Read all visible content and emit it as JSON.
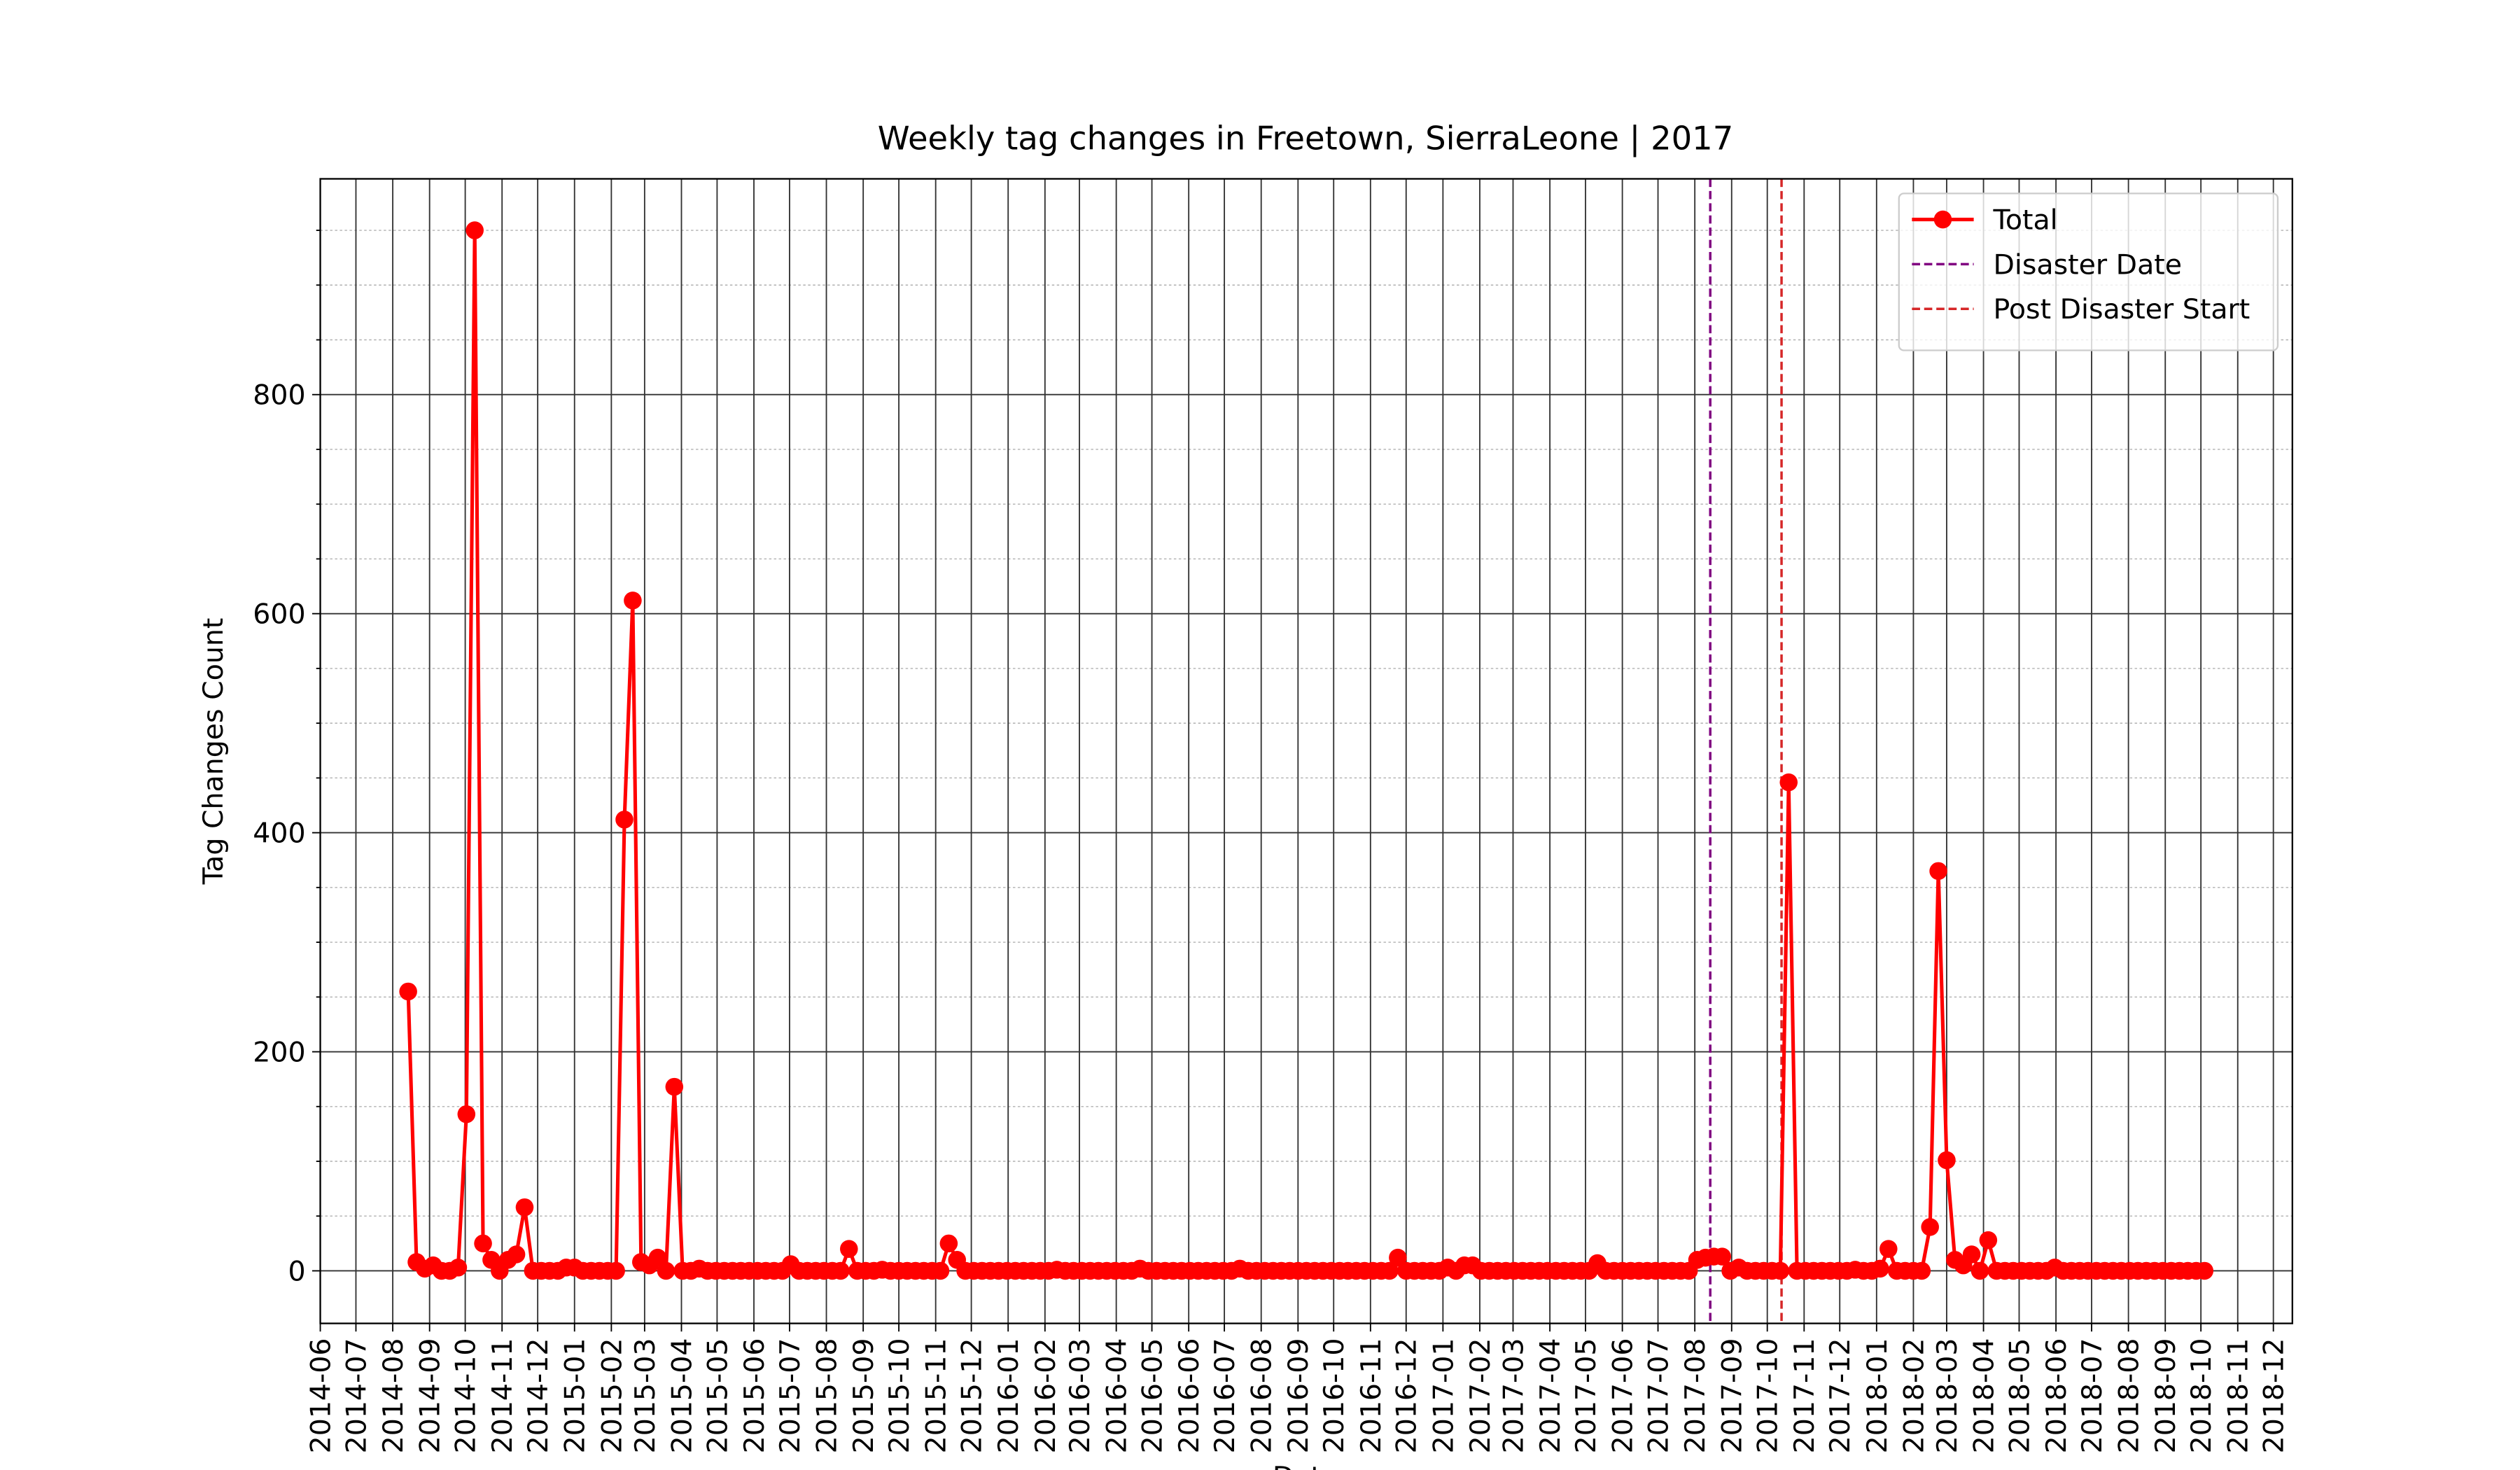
{
  "chart_data": {
    "type": "line",
    "title": "Weekly tag changes in Freetown, SierraLeone | 2017",
    "x_label": "Date",
    "y_label": "Tag Changes Count",
    "x": [
      "2014-08-14",
      "2014-08-21",
      "2014-08-28",
      "2014-09-04",
      "2014-09-11",
      "2014-09-18",
      "2014-09-25",
      "2014-10-02",
      "2014-10-09",
      "2014-10-16",
      "2014-10-23",
      "2014-10-30",
      "2014-11-06",
      "2014-11-13",
      "2014-11-20",
      "2014-11-27",
      "2014-12-04",
      "2014-12-11",
      "2014-12-18",
      "2014-12-25",
      "2015-01-01",
      "2015-01-08",
      "2015-01-15",
      "2015-01-22",
      "2015-01-29",
      "2015-02-05",
      "2015-02-12",
      "2015-02-19",
      "2015-02-26",
      "2015-03-05",
      "2015-03-12",
      "2015-03-19",
      "2015-03-26",
      "2015-04-02",
      "2015-04-09",
      "2015-04-16",
      "2015-04-23",
      "2015-04-30",
      "2015-05-07",
      "2015-05-14",
      "2015-05-21",
      "2015-05-28",
      "2015-06-04",
      "2015-06-11",
      "2015-06-18",
      "2015-06-25",
      "2015-07-02",
      "2015-07-09",
      "2015-07-16",
      "2015-07-23",
      "2015-07-30",
      "2015-08-06",
      "2015-08-13",
      "2015-08-20",
      "2015-08-27",
      "2015-09-03",
      "2015-09-10",
      "2015-09-17",
      "2015-09-24",
      "2015-10-01",
      "2015-10-08",
      "2015-10-15",
      "2015-10-22",
      "2015-10-29",
      "2015-11-05",
      "2015-11-12",
      "2015-11-19",
      "2015-11-26",
      "2015-12-03",
      "2015-12-10",
      "2015-12-17",
      "2015-12-24",
      "2015-12-31",
      "2016-01-07",
      "2016-01-14",
      "2016-01-21",
      "2016-01-28",
      "2016-02-04",
      "2016-02-11",
      "2016-02-18",
      "2016-02-25",
      "2016-03-03",
      "2016-03-10",
      "2016-03-17",
      "2016-03-24",
      "2016-03-31",
      "2016-04-07",
      "2016-04-14",
      "2016-04-21",
      "2016-04-28",
      "2016-05-05",
      "2016-05-12",
      "2016-05-19",
      "2016-05-26",
      "2016-06-02",
      "2016-06-09",
      "2016-06-16",
      "2016-06-23",
      "2016-06-30",
      "2016-07-07",
      "2016-07-14",
      "2016-07-21",
      "2016-07-28",
      "2016-08-04",
      "2016-08-11",
      "2016-08-18",
      "2016-08-25",
      "2016-09-01",
      "2016-09-08",
      "2016-09-15",
      "2016-09-22",
      "2016-09-29",
      "2016-10-06",
      "2016-10-13",
      "2016-10-20",
      "2016-10-27",
      "2016-11-03",
      "2016-11-10",
      "2016-11-17",
      "2016-11-24",
      "2016-12-01",
      "2016-12-08",
      "2016-12-15",
      "2016-12-22",
      "2016-12-29",
      "2017-01-05",
      "2017-01-12",
      "2017-01-19",
      "2017-01-26",
      "2017-02-02",
      "2017-02-09",
      "2017-02-16",
      "2017-02-23",
      "2017-03-02",
      "2017-03-09",
      "2017-03-16",
      "2017-03-23",
      "2017-03-30",
      "2017-04-06",
      "2017-04-13",
      "2017-04-20",
      "2017-04-27",
      "2017-05-04",
      "2017-05-11",
      "2017-05-18",
      "2017-05-25",
      "2017-06-01",
      "2017-06-08",
      "2017-06-15",
      "2017-06-22",
      "2017-06-29",
      "2017-07-06",
      "2017-07-13",
      "2017-07-20",
      "2017-07-27",
      "2017-08-03",
      "2017-08-10",
      "2017-08-17",
      "2017-08-24",
      "2017-08-31",
      "2017-09-07",
      "2017-09-14",
      "2017-09-21",
      "2017-09-28",
      "2017-10-05",
      "2017-10-12",
      "2017-10-19",
      "2017-10-26",
      "2017-11-02",
      "2017-11-09",
      "2017-11-16",
      "2017-11-23",
      "2017-11-30",
      "2017-12-07",
      "2017-12-14",
      "2017-12-21",
      "2017-12-28",
      "2018-01-04",
      "2018-01-11",
      "2018-01-18",
      "2018-01-25",
      "2018-02-01",
      "2018-02-08",
      "2018-02-15",
      "2018-02-22",
      "2018-03-01",
      "2018-03-08",
      "2018-03-15",
      "2018-03-22",
      "2018-03-29",
      "2018-04-05",
      "2018-04-12",
      "2018-04-19",
      "2018-04-26",
      "2018-05-03",
      "2018-05-10",
      "2018-05-17",
      "2018-05-24",
      "2018-05-31",
      "2018-06-07",
      "2018-06-14",
      "2018-06-21",
      "2018-06-28",
      "2018-07-05",
      "2018-07-12",
      "2018-07-19",
      "2018-07-26",
      "2018-08-02",
      "2018-08-09",
      "2018-08-16",
      "2018-08-23",
      "2018-08-30",
      "2018-09-06",
      "2018-09-13",
      "2018-09-20",
      "2018-09-27",
      "2018-10-04"
    ],
    "series": [
      {
        "name": "Total",
        "color": "#ff0000",
        "values": [
          255,
          8,
          2,
          5,
          0,
          0,
          3,
          143,
          950,
          25,
          10,
          0,
          10,
          15,
          58,
          0,
          0,
          0,
          0,
          3,
          3,
          0,
          0,
          0,
          0,
          0,
          412,
          612,
          8,
          5,
          12,
          0,
          168,
          0,
          0,
          2,
          0,
          0,
          0,
          0,
          0,
          0,
          0,
          0,
          0,
          0,
          6,
          0,
          0,
          0,
          0,
          0,
          0,
          20,
          0,
          0,
          0,
          1,
          0,
          0,
          0,
          0,
          0,
          0,
          0,
          25,
          10,
          0,
          0,
          0,
          0,
          0,
          0,
          0,
          0,
          0,
          0,
          0,
          1,
          0,
          0,
          0,
          0,
          0,
          0,
          0,
          0,
          0,
          2,
          0,
          0,
          0,
          0,
          0,
          0,
          0,
          0,
          0,
          0,
          0,
          2,
          0,
          0,
          0,
          0,
          0,
          0,
          0,
          0,
          0,
          0,
          0,
          0,
          0,
          0,
          0,
          0,
          0,
          0,
          12,
          0,
          0,
          0,
          0,
          0,
          3,
          0,
          5,
          5,
          0,
          0,
          0,
          0,
          0,
          0,
          0,
          0,
          0,
          0,
          0,
          0,
          0,
          0,
          7,
          0,
          0,
          0,
          0,
          0,
          0,
          0,
          0,
          0,
          0,
          0,
          10,
          12,
          13,
          13,
          0,
          3,
          0,
          0,
          0,
          0,
          0,
          446,
          0,
          0,
          0,
          0,
          0,
          0,
          0,
          1,
          0,
          0,
          2,
          20,
          0,
          0,
          0,
          0,
          40,
          365,
          101,
          10,
          5,
          15,
          0,
          28,
          0,
          0,
          0,
          0,
          0,
          0,
          0,
          3,
          0,
          0,
          0,
          0,
          0,
          0,
          0,
          0,
          0,
          0,
          0,
          0,
          0,
          0,
          0,
          0,
          0,
          0
        ]
      }
    ],
    "vlines": [
      {
        "name": "Disaster Date",
        "x": "2017-08-14",
        "color": "#800080"
      },
      {
        "name": "Post Disaster Start",
        "x": "2017-10-13",
        "color": "#d62728"
      }
    ],
    "xlim": [
      "2014-06-01",
      "2018-12-17"
    ],
    "xticks": [
      "2014-06",
      "2014-07",
      "2014-08",
      "2014-09",
      "2014-10",
      "2014-11",
      "2014-12",
      "2015-01",
      "2015-02",
      "2015-03",
      "2015-04",
      "2015-05",
      "2015-06",
      "2015-07",
      "2015-08",
      "2015-09",
      "2015-10",
      "2015-11",
      "2015-12",
      "2016-01",
      "2016-02",
      "2016-03",
      "2016-04",
      "2016-05",
      "2016-06",
      "2016-07",
      "2016-08",
      "2016-09",
      "2016-10",
      "2016-11",
      "2016-12",
      "2017-01",
      "2017-02",
      "2017-03",
      "2017-04",
      "2017-05",
      "2017-06",
      "2017-07",
      "2017-08",
      "2017-09",
      "2017-10",
      "2017-11",
      "2017-12",
      "2018-01",
      "2018-02",
      "2018-03",
      "2018-04",
      "2018-05",
      "2018-06",
      "2018-07",
      "2018-08",
      "2018-09",
      "2018-10",
      "2018-11",
      "2018-12"
    ],
    "ylim": [
      -48,
      997
    ],
    "yticks": [
      0,
      200,
      400,
      600,
      800
    ],
    "yminorticks": [
      50,
      100,
      150,
      250,
      300,
      350,
      450,
      500,
      550,
      650,
      700,
      750,
      850,
      900,
      950
    ],
    "grid": true,
    "legend": "upper right"
  }
}
